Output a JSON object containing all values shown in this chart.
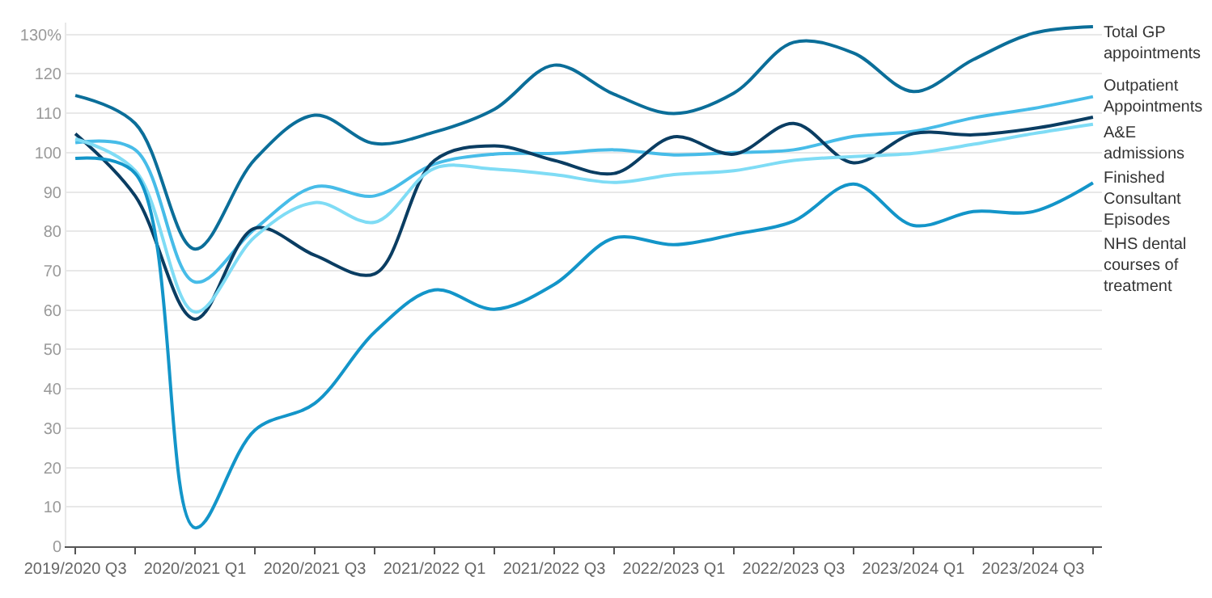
{
  "chart_data": {
    "type": "line",
    "categories": [
      "2019/2020 Q3",
      null,
      "2020/2021 Q1",
      null,
      "2020/2021 Q3",
      null,
      "2021/2022 Q1",
      null,
      "2021/2022 Q3",
      null,
      "2022/2023 Q1",
      null,
      "2022/2023 Q3",
      null,
      "2023/2024 Q1",
      null,
      "2023/2024 Q3",
      null
    ],
    "series": [
      {
        "name": "Total GP appointments",
        "color": "#0b6e99",
        "values": [
          114.5,
          107.4,
          75.5,
          98.3,
          109.5,
          102.3,
          105.2,
          111,
          122.2,
          114.8,
          109.9,
          115.1,
          128,
          125.3,
          115.5,
          123.6,
          130.3,
          132
        ]
      },
      {
        "name": "Outpatient Appointments",
        "color": "#47bce8",
        "values": [
          102.5,
          100.7,
          67.1,
          80.6,
          91.3,
          89,
          97.1,
          99.6,
          99.8,
          100.7,
          99.4,
          100,
          100.7,
          104.1,
          105.4,
          108.8,
          111.2,
          114.2
        ]
      },
      {
        "name": "A&E admissions",
        "color": "#0a3d62",
        "values": [
          104.8,
          89,
          57.7,
          80.8,
          73.9,
          69.2,
          98,
          101.7,
          98,
          94.7,
          104,
          99.6,
          107.4,
          97.4,
          104.8,
          104.5,
          106.1,
          109
        ]
      },
      {
        "name": "Finished Consultant Episodes",
        "color": "#7fdcf5",
        "values": [
          103.5,
          95.4,
          59.5,
          78.6,
          87.3,
          82.3,
          96,
          95.8,
          94.4,
          92.4,
          94.4,
          95.4,
          98,
          99,
          99.8,
          102.1,
          104.8,
          107.2
        ]
      },
      {
        "name": "NHS dental courses of treatment",
        "color": "#1395c9",
        "values": [
          98.5,
          94.7,
          4.7,
          29.5,
          36.3,
          54.4,
          65.1,
          60.2,
          66.5,
          78.3,
          76.6,
          79.2,
          82.6,
          92,
          81.5,
          85,
          85,
          92.3
        ]
      }
    ],
    "ylim": [
      0,
      133
    ],
    "yticks": [
      0,
      10,
      20,
      30,
      40,
      50,
      60,
      70,
      80,
      90,
      100,
      110,
      120,
      {
        "value": 130,
        "label": "130%"
      }
    ],
    "grid": "y",
    "legend": false,
    "marker": "none",
    "line_style": "solid"
  }
}
